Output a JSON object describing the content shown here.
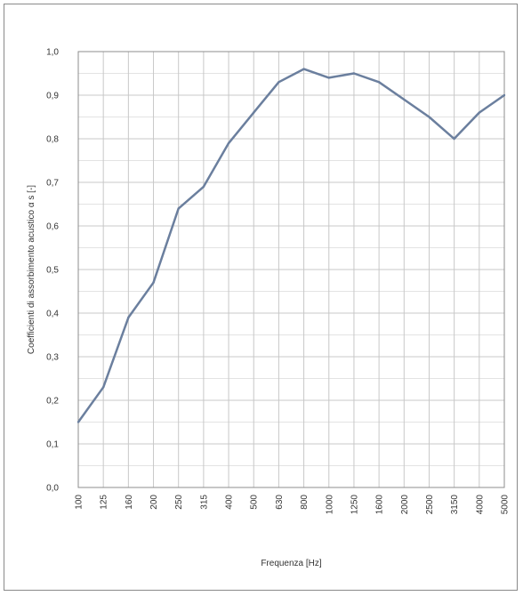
{
  "chart_data": {
    "type": "line",
    "title": "",
    "xlabel": "Frequenza [Hz]",
    "ylabel": "Coefficienti di assorbimento acustico α s [-]",
    "categories": [
      "100",
      "125",
      "160",
      "200",
      "250",
      "315",
      "400",
      "500",
      "630",
      "800",
      "1000",
      "1250",
      "1600",
      "2000",
      "2500",
      "3150",
      "4000",
      "5000"
    ],
    "series": [
      {
        "values": [
          0.15,
          0.23,
          0.39,
          0.47,
          0.64,
          0.69,
          0.79,
          0.86,
          0.93,
          0.96,
          0.94,
          0.95,
          0.93,
          0.89,
          0.85,
          0.8,
          0.86,
          0.9
        ]
      }
    ],
    "ylim": [
      0.0,
      1.0
    ],
    "yticks": [
      "0,0",
      "0,1",
      "0,2",
      "0,3",
      "0,4",
      "0,5",
      "0,6",
      "0,7",
      "0,8",
      "0,9",
      "1,0"
    ],
    "grid": true,
    "colors": {
      "line": "#6b7f9e",
      "grid": "#c8c8c8",
      "plot_border": "#8c8c8c"
    }
  }
}
